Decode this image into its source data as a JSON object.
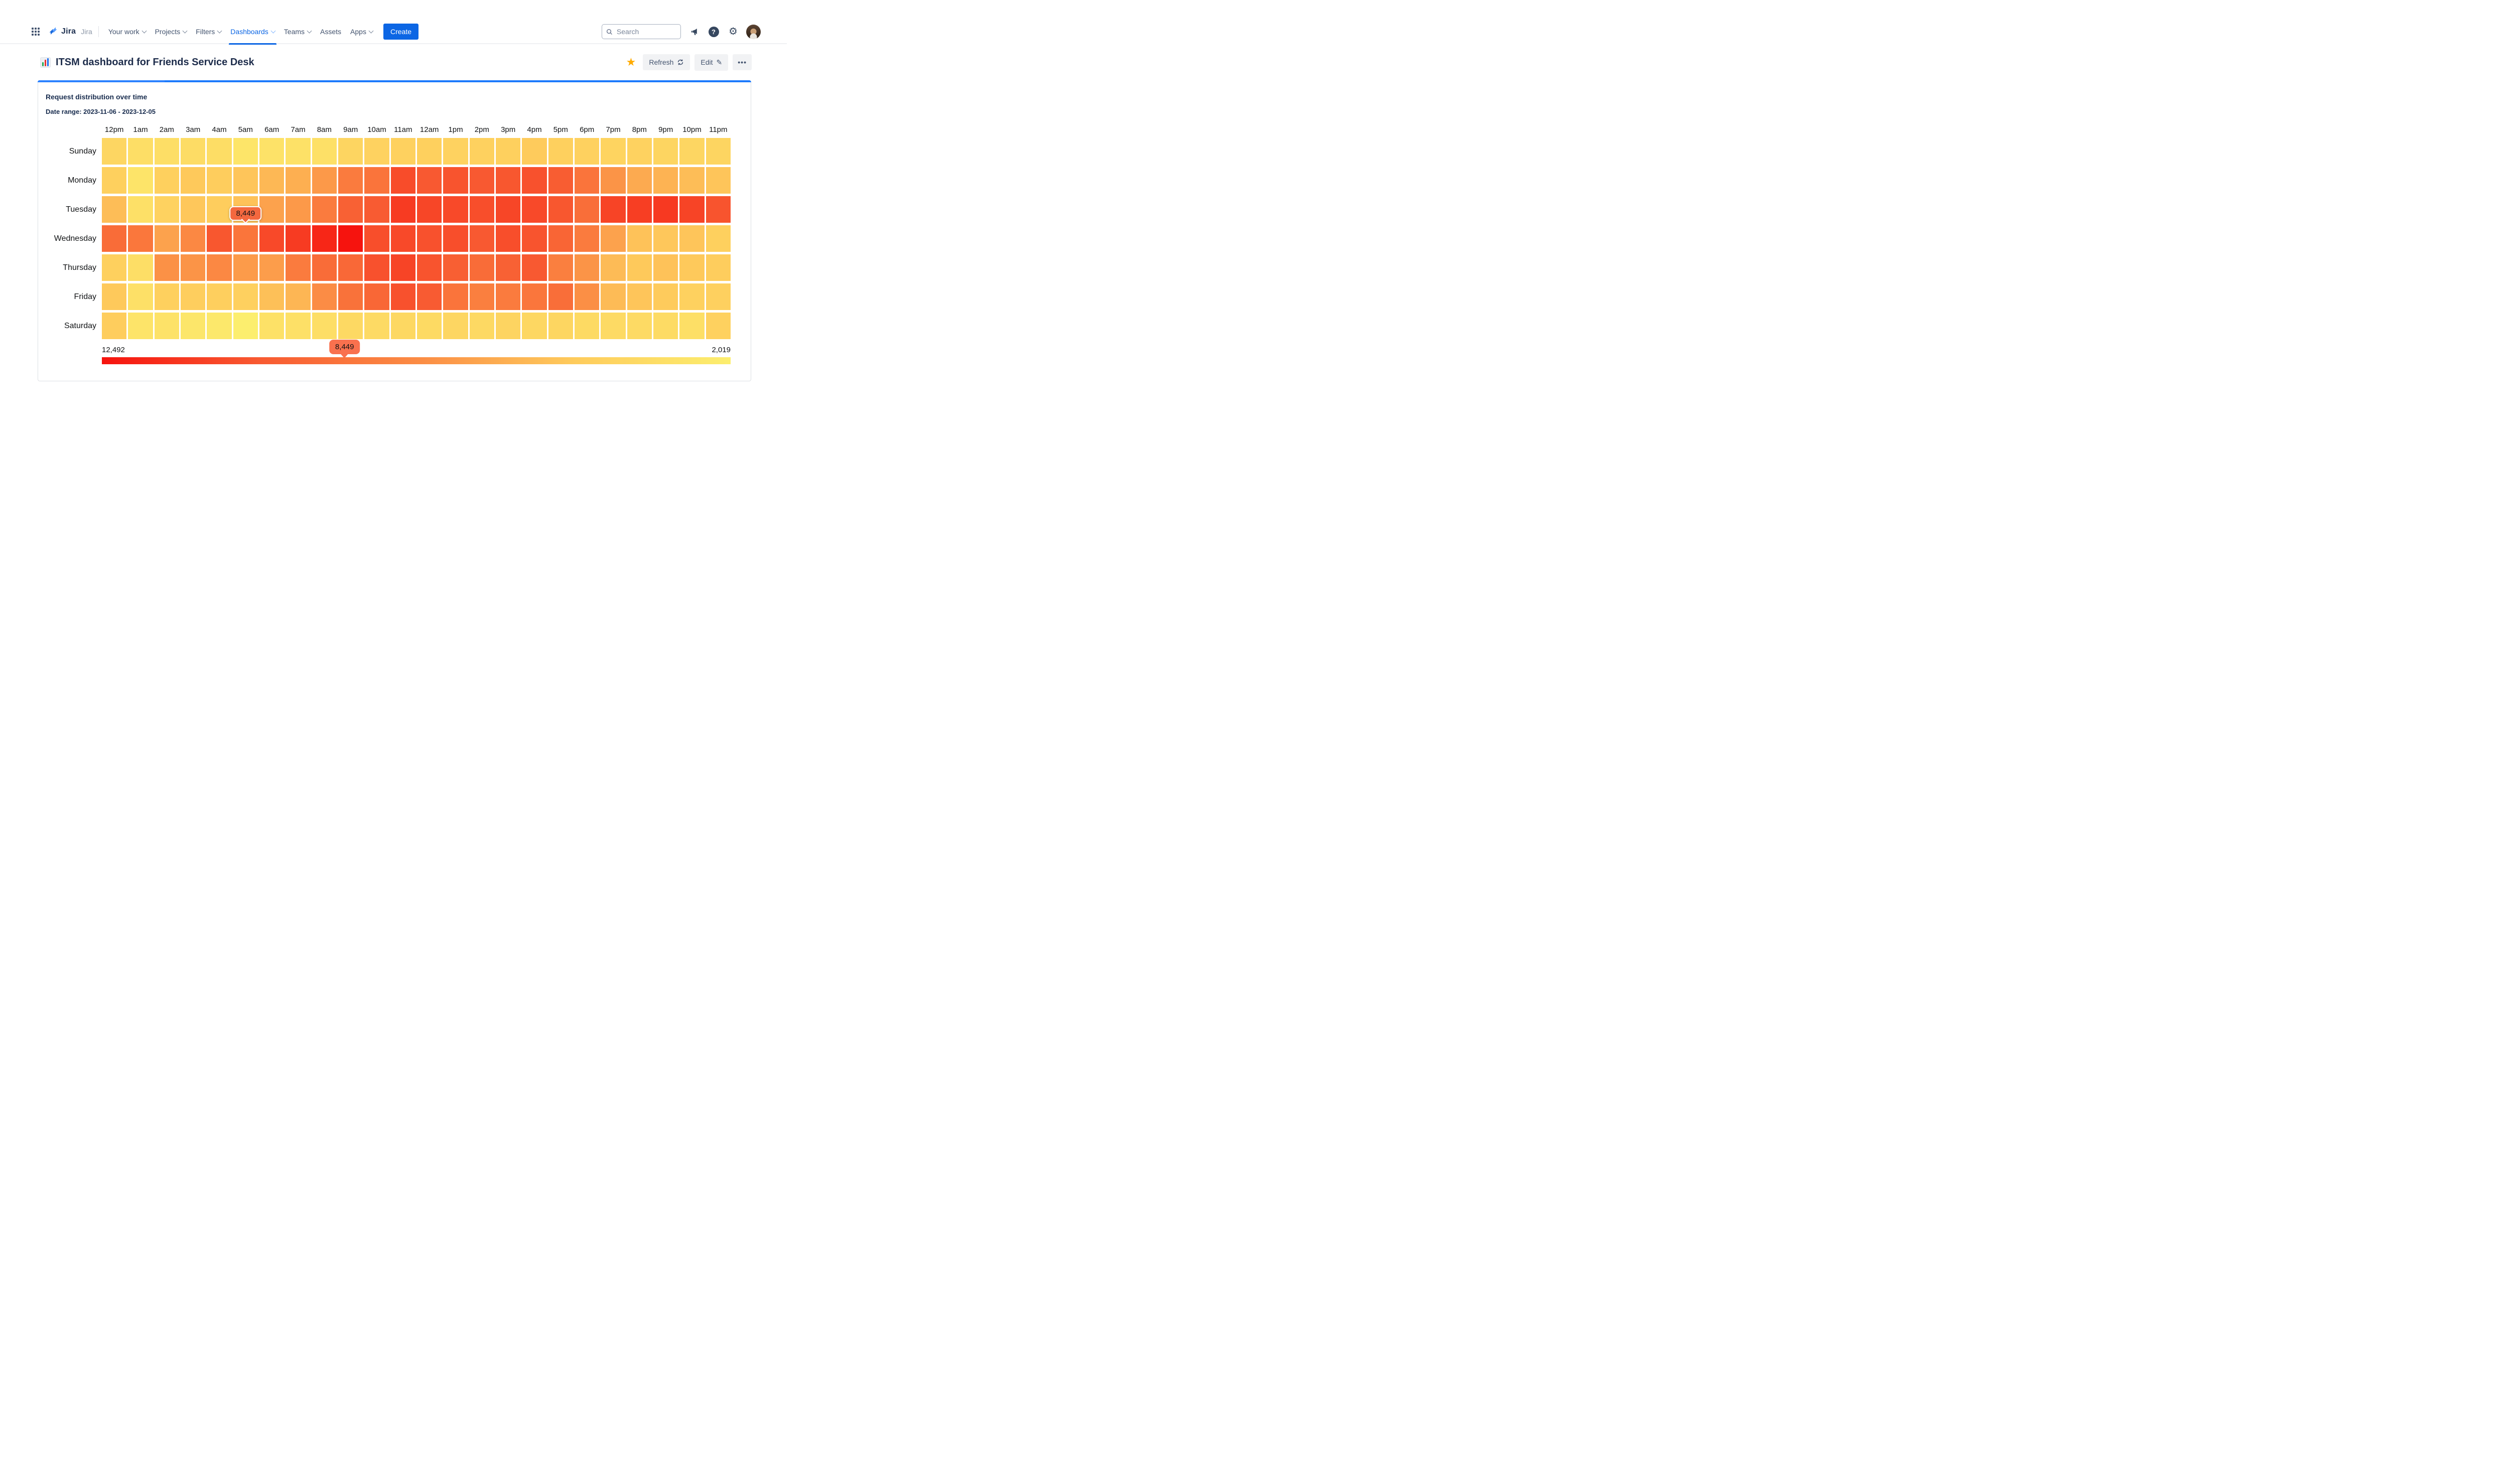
{
  "nav": {
    "logo_text": "Jira",
    "site_label": "Jira",
    "items": [
      {
        "label": "Your work",
        "chevron": true,
        "active": false
      },
      {
        "label": "Projects",
        "chevron": true,
        "active": false
      },
      {
        "label": "Filters",
        "chevron": true,
        "active": false
      },
      {
        "label": "Dashboards",
        "chevron": true,
        "active": true
      },
      {
        "label": "Teams",
        "chevron": true,
        "active": false
      },
      {
        "label": "Assets",
        "chevron": false,
        "active": false
      },
      {
        "label": "Apps",
        "chevron": true,
        "active": false
      }
    ],
    "create_label": "Create",
    "search_placeholder": "Search"
  },
  "header": {
    "title": "ITSM dashboard for Friends Service Desk",
    "refresh_label": "Refresh",
    "edit_label": "Edit",
    "more_label": "•••"
  },
  "panel": {
    "title": "Request distribution over time",
    "date_range": "Date range: 2023-11-06 - 2023-12-05"
  },
  "colors": {
    "accent_blue": "#0C66E4",
    "card_top_bar": "#1D7AFC",
    "star_yellow": "#FFAB00",
    "cell_tooltip_bg": "#F4683F",
    "legend_tooltip_bg": "#F9714E"
  },
  "chart_data": {
    "type": "heatmap",
    "title": "Request distribution over time",
    "columns": [
      "12pm",
      "1am",
      "2am",
      "3am",
      "4am",
      "5am",
      "6am",
      "7am",
      "8am",
      "9am",
      "10am",
      "11am",
      "12am",
      "1pm",
      "2pm",
      "3pm",
      "4pm",
      "5pm",
      "6pm",
      "7pm",
      "8pm",
      "9pm",
      "10pm",
      "11pm"
    ],
    "rows": [
      "Sunday",
      "Monday",
      "Tuesday",
      "Wednesday",
      "Thursday",
      "Friday",
      "Saturday"
    ],
    "series": [
      {
        "name": "Sunday",
        "values": [
          3800,
          3200,
          3200,
          3400,
          3300,
          2700,
          2900,
          3000,
          3100,
          3900,
          4100,
          4200,
          4300,
          4100,
          4200,
          4300,
          4600,
          4300,
          4200,
          4000,
          4100,
          3900,
          3800,
          3900
        ]
      },
      {
        "name": "Monday",
        "values": [
          4300,
          2750,
          4300,
          4700,
          4500,
          4900,
          5400,
          5800,
          6700,
          8100,
          8500,
          10400,
          9900,
          10100,
          9900,
          10000,
          10200,
          9700,
          8500,
          6900,
          6000,
          5600,
          5200,
          4900
        ]
      },
      {
        "name": "Tuesday",
        "values": [
          5200,
          3100,
          4100,
          4800,
          4500,
          5000,
          6300,
          6700,
          8100,
          9500,
          9800,
          11000,
          10600,
          10500,
          10300,
          10600,
          10500,
          10000,
          8800,
          10700,
          10900,
          11100,
          10700,
          10100
        ]
      },
      {
        "name": "Wednesday",
        "values": [
          8900,
          8300,
          6300,
          7400,
          10000,
          8449,
          10500,
          11000,
          11800,
          12492,
          10300,
          10500,
          10200,
          10300,
          9900,
          10300,
          10100,
          9300,
          8100,
          6300,
          5000,
          4800,
          4900,
          4300
        ]
      },
      {
        "name": "Thursday",
        "values": [
          4300,
          3200,
          7000,
          6900,
          7400,
          6600,
          6500,
          8100,
          8900,
          9100,
          10200,
          10700,
          10100,
          9600,
          8900,
          9500,
          9900,
          7900,
          6900,
          5300,
          4700,
          5000,
          4700,
          4500
        ]
      },
      {
        "name": "Friday",
        "values": [
          4700,
          3100,
          4300,
          4400,
          4350,
          4250,
          5100,
          5500,
          7200,
          8600,
          9200,
          10200,
          9800,
          8500,
          7900,
          8100,
          8400,
          8800,
          7100,
          5300,
          4900,
          4600,
          4200,
          4250
        ]
      },
      {
        "name": "Saturday",
        "values": [
          4500,
          2800,
          2900,
          2600,
          2500,
          2019,
          3000,
          3100,
          3250,
          3600,
          3500,
          3700,
          3550,
          3800,
          3600,
          3950,
          3750,
          3850,
          3550,
          3500,
          3520,
          3450,
          3150,
          4200
        ]
      }
    ],
    "value_min": 2019,
    "value_max": 12492,
    "selected_cell": {
      "row": "Wednesday",
      "column": "5am",
      "value": 8449,
      "label": "8,449"
    },
    "legend": {
      "left_label": "12,492",
      "right_label": "2,019",
      "marker_value": 8449,
      "marker_label": "8,449",
      "gradient_stops": [
        {
          "t": 0,
          "color": "#F6130E"
        },
        {
          "t": 0.25,
          "color": "#F85A31"
        },
        {
          "t": 0.5,
          "color": "#FB8B44"
        },
        {
          "t": 0.75,
          "color": "#FECB5C"
        },
        {
          "t": 1,
          "color": "#FCEE6E"
        }
      ]
    }
  }
}
